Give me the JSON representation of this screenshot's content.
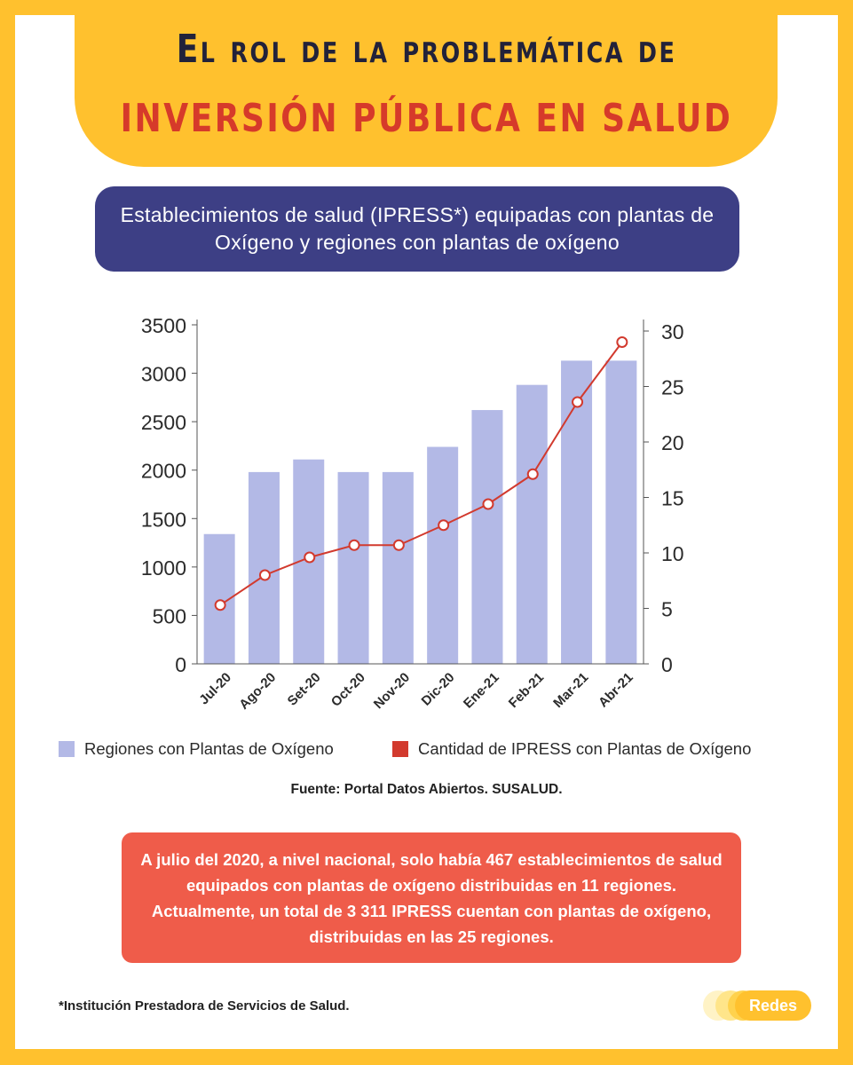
{
  "colors": {
    "frame": "#FFC12E",
    "title_dark": "#22223A",
    "title_red": "#D63A2A",
    "subtitle_bg": "#3D3F85",
    "bar": "#B3B9E6",
    "line": "#D23A2E",
    "note_bg": "#EF5C4A"
  },
  "title": {
    "line1": "El rol de la problemática de",
    "line2": "inversión pública en salud"
  },
  "subtitle": "Establecimientos de salud (IPRESS*) equipadas con plantas de Oxígeno y regiones con plantas de oxígeno",
  "chart_data": {
    "type": "bar",
    "categories": [
      "Jul-20",
      "Ago-20",
      "Set-20",
      "Oct-20",
      "Nov-20",
      "Dic-20",
      "Ene-21",
      "Feb-21",
      "Mar-21",
      "Abr-21"
    ],
    "series": [
      {
        "name": "Regiones con Plantas de Oxígeno",
        "type": "bar",
        "axis": "left",
        "color": "#B3B9E6",
        "values": [
          1340,
          1980,
          2110,
          1980,
          1980,
          2240,
          2620,
          2880,
          3130,
          3130
        ]
      },
      {
        "name": "Cantidad de IPRESS con Plantas de Oxígeno",
        "type": "line",
        "axis": "right",
        "color": "#D23A2E",
        "marker": "hollow-circle",
        "values": [
          5.3,
          8.0,
          9.6,
          10.7,
          10.7,
          12.5,
          14.4,
          17.1,
          23.6,
          29.0
        ]
      }
    ],
    "y_left": {
      "lim": [
        0,
        3500
      ],
      "ticks": [
        0,
        500,
        1000,
        1500,
        2000,
        2500,
        3000,
        3500
      ]
    },
    "y_right": {
      "lim": [
        0,
        30
      ],
      "ticks": [
        0,
        5,
        10,
        15,
        20,
        25,
        30
      ]
    },
    "xlabel": "",
    "ylabel": "",
    "grid": false,
    "legend_position": "bottom",
    "tick_label_rotation": -45
  },
  "legend": {
    "bars": "Regiones con Plantas de Oxígeno",
    "line": "Cantidad de IPRESS con Plantas de Oxígeno"
  },
  "source": "Fuente: Portal Datos Abiertos. SUSALUD.",
  "note": "A julio del 2020, a nivel nacional, solo había 467 establecimientos de salud equipados con plantas de oxígeno distribuidas en 11 regiones. Actualmente, un total de 3 311 IPRESS cuentan con plantas de oxígeno, distribuidas en las 25 regiones.",
  "footnote": "*Institución Prestadora de Servicios de Salud.",
  "logo_text": "Redes"
}
